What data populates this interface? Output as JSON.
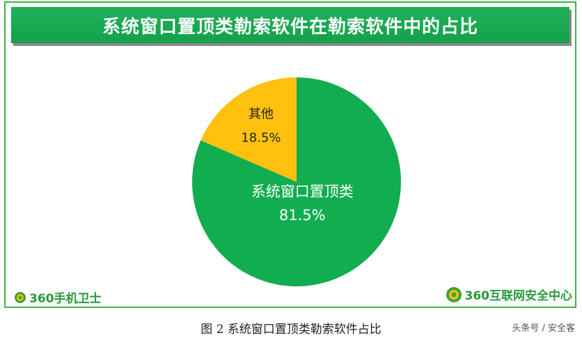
{
  "chart_data": {
    "type": "pie",
    "title": "系统窗口置顶类勒索软件在勒索软件中的占比",
    "slices": [
      {
        "name": "系统窗口置顶类",
        "value": 81.5,
        "label": "81.5%",
        "color": "#12ad50"
      },
      {
        "name": "其他",
        "value": 18.5,
        "label": "18.5%",
        "color": "#ffc10e"
      }
    ],
    "start_angle_deg": 0,
    "direction": "clockwise",
    "legend": "none"
  },
  "branding": {
    "left_logo_text": "360手机卫士",
    "right_logo_text": "360互联网安全中心"
  },
  "caption": "图 2  系统窗口置顶类勒索软件占比",
  "watermark": "头条号 / 安全客"
}
